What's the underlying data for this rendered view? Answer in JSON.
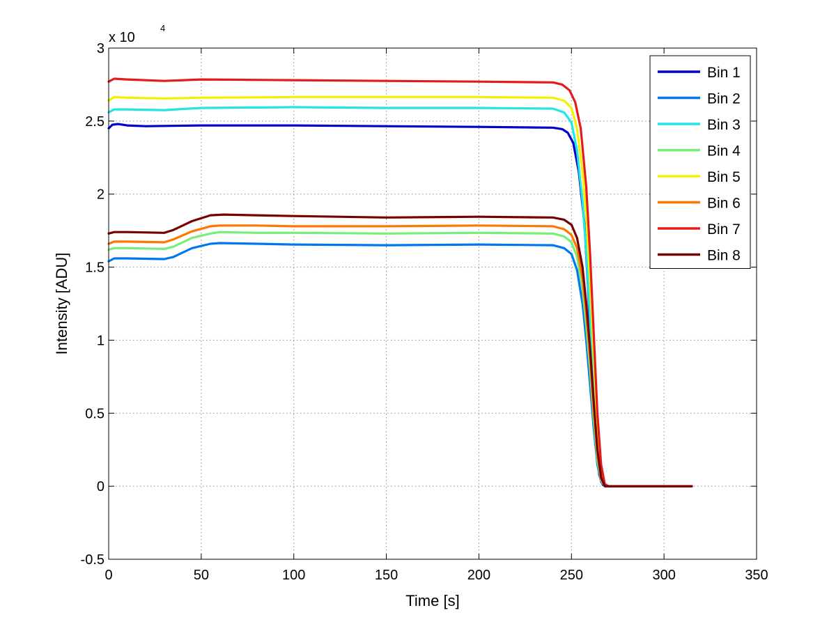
{
  "chart_data": {
    "type": "line",
    "title": "",
    "xlabel": "Time [s]",
    "ylabel": "Intensity [ADU]",
    "xlim": [
      0,
      350
    ],
    "ylim": [
      -5000,
      30000
    ],
    "y_exponent_label": "x 10",
    "y_exponent_power": "4",
    "x_ticks": [
      0,
      50,
      100,
      150,
      200,
      250,
      300,
      350
    ],
    "x_tick_labels": [
      "0",
      "50",
      "100",
      "150",
      "200",
      "250",
      "300",
      "350"
    ],
    "y_ticks": [
      -5000,
      0,
      5000,
      10000,
      15000,
      20000,
      25000,
      30000
    ],
    "y_tick_labels": [
      "-0.5",
      "0",
      "0.5",
      "1",
      "1.5",
      "2",
      "2.5",
      "3"
    ],
    "grid": true,
    "legend_position": "top-right",
    "series": [
      {
        "name": "Bin 1",
        "color": "#0000cc",
        "points": [
          [
            0,
            24500
          ],
          [
            2,
            24750
          ],
          [
            5,
            24800
          ],
          [
            10,
            24700
          ],
          [
            20,
            24650
          ],
          [
            50,
            24700
          ],
          [
            100,
            24700
          ],
          [
            150,
            24650
          ],
          [
            200,
            24600
          ],
          [
            240,
            24550
          ],
          [
            245,
            24450
          ],
          [
            248,
            24200
          ],
          [
            251,
            23500
          ],
          [
            254,
            21500
          ],
          [
            257,
            18000
          ],
          [
            259,
            13500
          ],
          [
            261,
            8000
          ],
          [
            263,
            3500
          ],
          [
            265,
            800
          ],
          [
            267,
            80
          ],
          [
            270,
            0
          ],
          [
            315,
            0
          ]
        ]
      },
      {
        "name": "Bin 2",
        "color": "#0077ee",
        "points": [
          [
            0,
            15400
          ],
          [
            3,
            15600
          ],
          [
            10,
            15600
          ],
          [
            30,
            15550
          ],
          [
            35,
            15700
          ],
          [
            45,
            16300
          ],
          [
            55,
            16600
          ],
          [
            60,
            16650
          ],
          [
            80,
            16600
          ],
          [
            100,
            16550
          ],
          [
            150,
            16500
          ],
          [
            200,
            16550
          ],
          [
            240,
            16500
          ],
          [
            246,
            16300
          ],
          [
            250,
            15900
          ],
          [
            253,
            14800
          ],
          [
            256,
            12500
          ],
          [
            258,
            10000
          ],
          [
            260,
            7000
          ],
          [
            262,
            4000
          ],
          [
            264,
            1500
          ],
          [
            266,
            300
          ],
          [
            268,
            0
          ],
          [
            315,
            0
          ]
        ]
      },
      {
        "name": "Bin 3",
        "color": "#22e5e5",
        "points": [
          [
            0,
            25600
          ],
          [
            3,
            25800
          ],
          [
            10,
            25800
          ],
          [
            30,
            25750
          ],
          [
            50,
            25900
          ],
          [
            100,
            25950
          ],
          [
            150,
            25900
          ],
          [
            200,
            25900
          ],
          [
            240,
            25850
          ],
          [
            246,
            25600
          ],
          [
            250,
            24900
          ],
          [
            253,
            23000
          ],
          [
            256,
            19500
          ],
          [
            258,
            16000
          ],
          [
            260,
            11500
          ],
          [
            262,
            7000
          ],
          [
            264,
            3000
          ],
          [
            266,
            700
          ],
          [
            268,
            50
          ],
          [
            270,
            0
          ],
          [
            315,
            0
          ]
        ]
      },
      {
        "name": "Bin 4",
        "color": "#77ee77",
        "points": [
          [
            0,
            16200
          ],
          [
            3,
            16300
          ],
          [
            10,
            16300
          ],
          [
            30,
            16250
          ],
          [
            35,
            16400
          ],
          [
            45,
            17000
          ],
          [
            55,
            17300
          ],
          [
            60,
            17400
          ],
          [
            80,
            17350
          ],
          [
            100,
            17350
          ],
          [
            150,
            17300
          ],
          [
            200,
            17350
          ],
          [
            240,
            17300
          ],
          [
            246,
            17100
          ],
          [
            250,
            16700
          ],
          [
            253,
            15700
          ],
          [
            256,
            13500
          ],
          [
            258,
            11000
          ],
          [
            260,
            8000
          ],
          [
            262,
            4600
          ],
          [
            264,
            1800
          ],
          [
            266,
            400
          ],
          [
            268,
            0
          ],
          [
            315,
            0
          ]
        ]
      },
      {
        "name": "Bin 5",
        "color": "#f2f200",
        "points": [
          [
            0,
            26400
          ],
          [
            3,
            26650
          ],
          [
            10,
            26600
          ],
          [
            30,
            26550
          ],
          [
            50,
            26600
          ],
          [
            100,
            26650
          ],
          [
            150,
            26650
          ],
          [
            200,
            26650
          ],
          [
            240,
            26600
          ],
          [
            246,
            26400
          ],
          [
            250,
            25900
          ],
          [
            253,
            24500
          ],
          [
            256,
            21500
          ],
          [
            258,
            18500
          ],
          [
            260,
            14000
          ],
          [
            262,
            9000
          ],
          [
            264,
            4000
          ],
          [
            266,
            1100
          ],
          [
            268,
            100
          ],
          [
            270,
            0
          ],
          [
            315,
            0
          ]
        ]
      },
      {
        "name": "Bin 6",
        "color": "#ff7700",
        "points": [
          [
            0,
            16600
          ],
          [
            3,
            16750
          ],
          [
            10,
            16750
          ],
          [
            30,
            16700
          ],
          [
            35,
            16900
          ],
          [
            45,
            17450
          ],
          [
            55,
            17800
          ],
          [
            60,
            17850
          ],
          [
            80,
            17850
          ],
          [
            100,
            17800
          ],
          [
            150,
            17800
          ],
          [
            200,
            17850
          ],
          [
            240,
            17800
          ],
          [
            246,
            17600
          ],
          [
            250,
            17200
          ],
          [
            253,
            16300
          ],
          [
            256,
            14200
          ],
          [
            258,
            11800
          ],
          [
            260,
            8800
          ],
          [
            262,
            5200
          ],
          [
            264,
            2200
          ],
          [
            266,
            500
          ],
          [
            268,
            0
          ],
          [
            315,
            0
          ]
        ]
      },
      {
        "name": "Bin 7",
        "color": "#e51a1a",
        "points": [
          [
            0,
            27700
          ],
          [
            3,
            27900
          ],
          [
            10,
            27850
          ],
          [
            30,
            27750
          ],
          [
            50,
            27850
          ],
          [
            100,
            27800
          ],
          [
            150,
            27750
          ],
          [
            200,
            27700
          ],
          [
            240,
            27650
          ],
          [
            245,
            27500
          ],
          [
            249,
            27100
          ],
          [
            252,
            26300
          ],
          [
            255,
            24500
          ],
          [
            258,
            20500
          ],
          [
            260,
            16000
          ],
          [
            262,
            10500
          ],
          [
            264,
            5000
          ],
          [
            266,
            1500
          ],
          [
            268,
            150
          ],
          [
            270,
            0
          ],
          [
            315,
            0
          ]
        ]
      },
      {
        "name": "Bin 8",
        "color": "#770000",
        "points": [
          [
            0,
            17300
          ],
          [
            3,
            17400
          ],
          [
            10,
            17400
          ],
          [
            30,
            17350
          ],
          [
            35,
            17550
          ],
          [
            45,
            18150
          ],
          [
            55,
            18550
          ],
          [
            62,
            18600
          ],
          [
            80,
            18550
          ],
          [
            100,
            18500
          ],
          [
            150,
            18400
          ],
          [
            200,
            18450
          ],
          [
            240,
            18400
          ],
          [
            246,
            18250
          ],
          [
            250,
            17900
          ],
          [
            253,
            17000
          ],
          [
            256,
            15000
          ],
          [
            258,
            12500
          ],
          [
            260,
            9500
          ],
          [
            262,
            5800
          ],
          [
            264,
            2500
          ],
          [
            266,
            600
          ],
          [
            268,
            0
          ],
          [
            315,
            0
          ]
        ]
      }
    ]
  }
}
